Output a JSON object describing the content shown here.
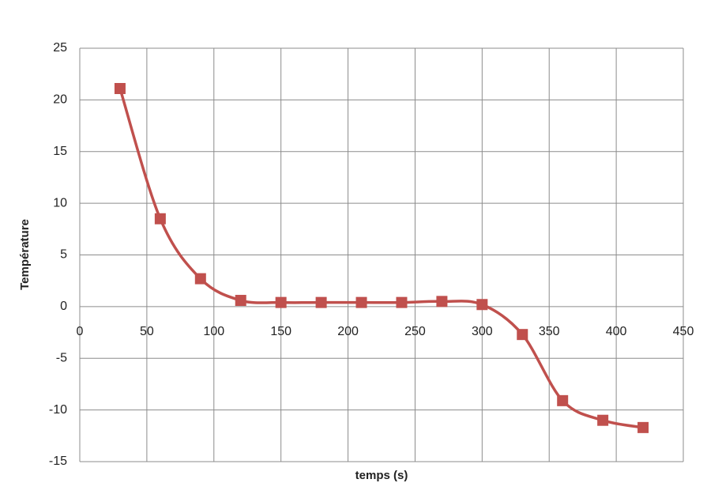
{
  "chart_data": {
    "type": "line",
    "x_label": "temps (s)",
    "y_label": "Température",
    "x": [
      30,
      60,
      90,
      120,
      150,
      180,
      210,
      240,
      270,
      300,
      330,
      360,
      390,
      420
    ],
    "series": [
      {
        "color": "#c0504d",
        "values": [
          21.1,
          8.5,
          2.7,
          0.6,
          0.4,
          0.4,
          0.4,
          0.4,
          0.5,
          0.2,
          -2.7,
          -9.1,
          -11.0,
          -11.7
        ]
      }
    ],
    "xlim": [
      0,
      450
    ],
    "xticks": [
      0,
      50,
      100,
      150,
      200,
      250,
      300,
      350,
      400,
      450
    ],
    "ylim": [
      -15,
      25
    ],
    "yticks": [
      -15,
      -10,
      -5,
      0,
      5,
      10,
      15,
      20,
      25
    ],
    "grid": true,
    "smooth": true,
    "marker": "square"
  }
}
